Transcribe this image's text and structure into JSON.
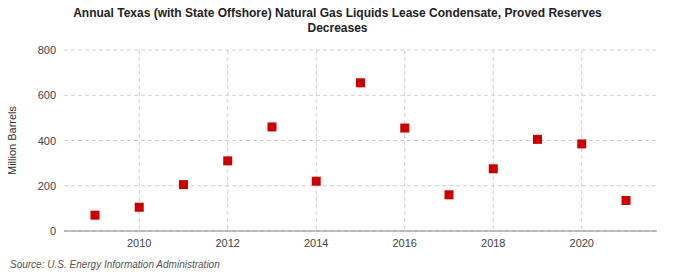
{
  "chart_data": {
    "type": "scatter",
    "title": "Annual Texas (with State Offshore) Natural Gas Liquids Lease Condensate, Proved Reserves\nDecreases",
    "y_label": "Million Barrels",
    "source": "Source: U.S. Energy Information Administration",
    "x": [
      2009,
      2010,
      2011,
      2012,
      2013,
      2014,
      2015,
      2016,
      2017,
      2018,
      2019,
      2020,
      2021
    ],
    "values": [
      70,
      105,
      205,
      310,
      460,
      220,
      655,
      455,
      160,
      275,
      405,
      385,
      135
    ],
    "xlim": [
      2008.3,
      2021.7
    ],
    "xticks": [
      2010,
      2012,
      2014,
      2016,
      2018,
      2020
    ],
    "ylim": [
      0,
      800
    ],
    "yticks": [
      0,
      200,
      400,
      600,
      800
    ],
    "color": "#cc0000",
    "marker": "square",
    "grid": true
  }
}
